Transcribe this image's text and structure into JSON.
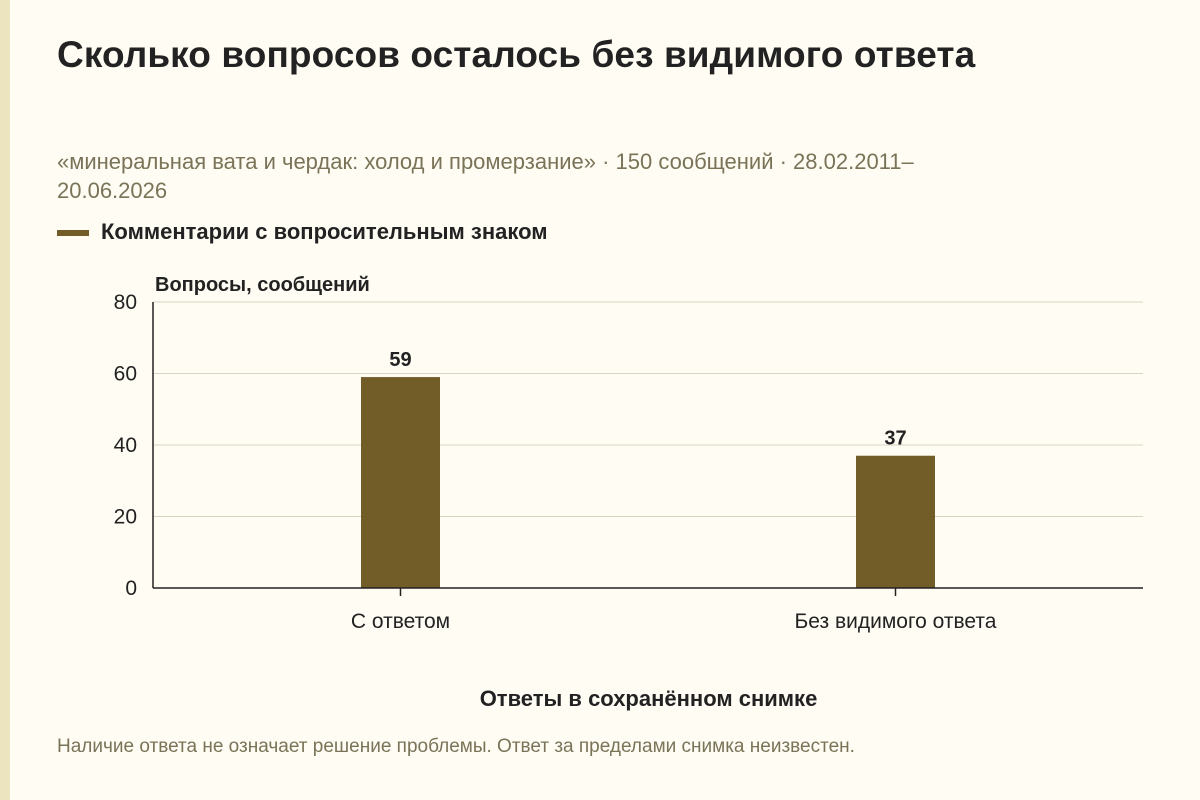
{
  "page": {
    "title": "Сколько вопросов осталось без видимого ответа",
    "subtitle": "«минеральная вата и чердак: холод и промерзание» · 150 сообщений · 28.02.2011–20.06.2026",
    "note": "Наличие ответа не означает решение проблемы. Ответ за пределами снимка неизвестен.",
    "bar_color": "#725c28"
  },
  "chart_data": {
    "type": "bar",
    "categories": [
      "С ответом",
      "Без видимого ответа"
    ],
    "series": [
      {
        "name": "Комментарии с вопросительным знаком",
        "values": [
          59,
          37
        ]
      }
    ],
    "xlabel": "Ответы в сохранённом снимке",
    "ylabel": "Вопросы, сообщений",
    "ylim": [
      0,
      80
    ],
    "yticks": [
      0,
      20,
      40,
      60,
      80
    ],
    "grid": true,
    "legend": "top-left"
  }
}
